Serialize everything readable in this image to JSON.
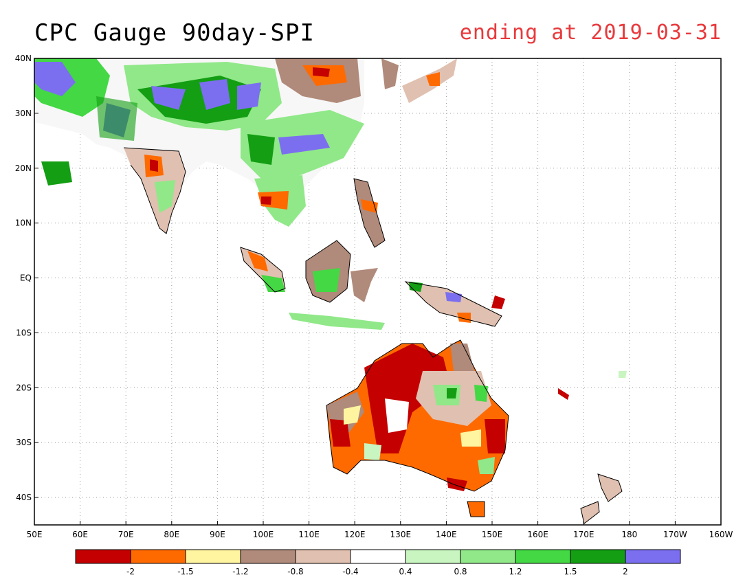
{
  "title": "CPC Gauge 90day-SPI",
  "subtitle": "ending at 2019-03-31",
  "map": {
    "lon_range": [
      50,
      200
    ],
    "lat_range": [
      -45,
      40
    ],
    "lon_ticks": [
      "50E",
      "60E",
      "70E",
      "80E",
      "90E",
      "100E",
      "110E",
      "120E",
      "130E",
      "140E",
      "150E",
      "160E",
      "170E",
      "180",
      "170W",
      "160W"
    ],
    "lat_ticks": [
      "40N",
      "30N",
      "20N",
      "10N",
      "EQ",
      "10S",
      "20S",
      "30S",
      "40S"
    ],
    "lat_tick_values": [
      40,
      30,
      20,
      10,
      0,
      -10,
      -20,
      -30,
      -40
    ]
  },
  "legend": {
    "colors": [
      "#c40000",
      "#ff6a00",
      "#fff5a0",
      "#b08a7a",
      "#e0c0b0",
      "#ffffff",
      "#c8f5c0",
      "#90e888",
      "#44d844",
      "#139e13",
      "#7b6ff0"
    ],
    "labels": [
      "-2",
      "-1.5",
      "-1.2",
      "-0.8",
      "-0.4",
      "0.4",
      "0.8",
      "1.2",
      "1.5",
      "2"
    ]
  }
}
